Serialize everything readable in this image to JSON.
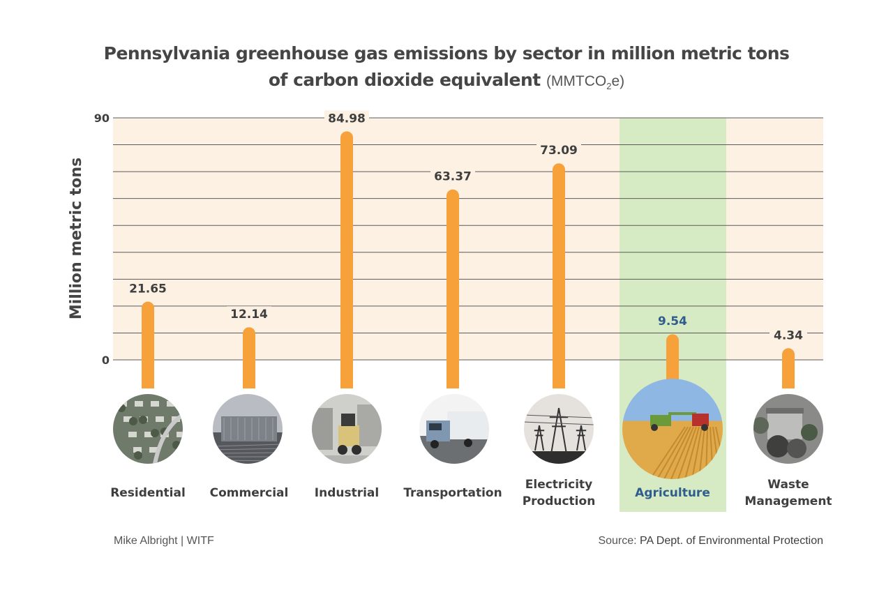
{
  "title": {
    "line1": "Pennsylvania greenhouse gas emissions by sector in million metric tons",
    "line2": "of carbon dioxide equivalent",
    "unit_prefix": "(MMTCO",
    "unit_sub": "2",
    "unit_suffix": "e)"
  },
  "footer": {
    "credit": "Mike Albright  |  WITF",
    "source_prefix": "Source: ",
    "source_name": "PA Dept. of Environmental Protection"
  },
  "colors": {
    "bar": "#f7a13a",
    "plot_bg": "#fdf1e3",
    "highlight_bg": "#d6ebc3",
    "highlight_text": "#2f5d8e",
    "grid": "#5a5a5a"
  },
  "chart_data": {
    "type": "bar",
    "ylabel": "Million metric tons",
    "ylim": [
      0,
      90
    ],
    "yticks": [
      "0",
      "90"
    ],
    "grid": true,
    "categories": [
      {
        "label": [
          "Residential"
        ],
        "icon": "residential-icon"
      },
      {
        "label": [
          "Commercial"
        ],
        "icon": "commercial-icon"
      },
      {
        "label": [
          "Industrial"
        ],
        "icon": "industrial-icon"
      },
      {
        "label": [
          "Transportation"
        ],
        "icon": "transportation-icon"
      },
      {
        "label": [
          "Electricity",
          "Production"
        ],
        "icon": "electricity-icon"
      },
      {
        "label": [
          "Agriculture"
        ],
        "icon": "agriculture-icon"
      },
      {
        "label": [
          "Waste",
          "Management"
        ],
        "icon": "waste-icon"
      }
    ],
    "values": [
      21.65,
      12.14,
      84.98,
      63.37,
      73.09,
      9.54,
      4.34
    ],
    "value_labels": [
      "21.65",
      "12.14",
      "84.98",
      "63.37",
      "73.09",
      "9.54",
      "4.34"
    ],
    "highlight": "Agriculture"
  }
}
